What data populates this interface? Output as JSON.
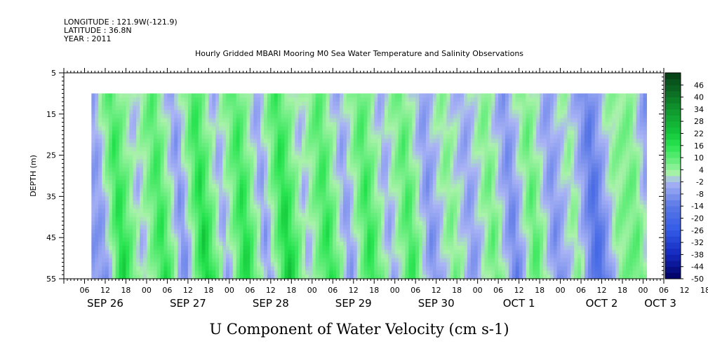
{
  "header": {
    "longitude": "LONGITUDE : 121.9W(-121.9)",
    "latitude": "LATITUDE : 36.8N",
    "year": "YEAR : 2011",
    "title": "Hourly Gridded MBARI Mooring M0 Sea Water Temperature and Salinity Observations"
  },
  "chart_data": {
    "type": "heatmap",
    "title": "U Component of Water Velocity (cm s-1)",
    "ylabel": "DEPTH (m)",
    "xlabel": "",
    "x_hour_labels": [
      "06",
      "12",
      "18",
      "00",
      "06",
      "12",
      "18",
      "00",
      "06",
      "12",
      "18",
      "00",
      "06",
      "12",
      "18",
      "00",
      "06",
      "12",
      "18",
      "00",
      "06",
      "12",
      "18",
      "00",
      "06",
      "12",
      "18",
      "00",
      "06",
      "12",
      "18",
      "00"
    ],
    "x_day_labels": [
      {
        "label": "SEP 26",
        "hour": 12
      },
      {
        "label": "SEP 27",
        "hour": 36
      },
      {
        "label": "SEP 28",
        "hour": 60
      },
      {
        "label": "SEP 29",
        "hour": 84
      },
      {
        "label": "SEP 30",
        "hour": 108
      },
      {
        "label": "OCT  1",
        "hour": 132
      },
      {
        "label": "OCT  2",
        "hour": 156
      },
      {
        "label": "OCT  3",
        "hour": 173
      }
    ],
    "x_range_hours": [
      0,
      174
    ],
    "data_range_hours": [
      8,
      169
    ],
    "y_range": [
      5,
      55
    ],
    "y_ticks": [
      5,
      15,
      25,
      35,
      45,
      55
    ],
    "y_reversed": true,
    "data_depth_range": [
      10,
      55
    ],
    "colorbar_levels": [
      46,
      40,
      34,
      28,
      22,
      16,
      10,
      4,
      -2,
      -8,
      -14,
      -20,
      -26,
      -32,
      -38,
      -44,
      -50
    ],
    "colorbar_range": [
      -50,
      52
    ],
    "colorbar_step": 3,
    "colors": {
      "strong_negative": "#000060",
      "negative": "#4a64e0",
      "weak_negative": "#a7b2f2",
      "weak_positive": "#a8f0a8",
      "positive": "#19e64a",
      "strong_positive": "#0a4a1a"
    },
    "hourly_mean_velocity": [
      {
        "hour": 8,
        "value": -6
      },
      {
        "hour": 13,
        "value": 16
      },
      {
        "hour": 19,
        "value": -2
      },
      {
        "hour": 25,
        "value": 14
      },
      {
        "hour": 31,
        "value": -8
      },
      {
        "hour": 37,
        "value": 18
      },
      {
        "hour": 43,
        "value": -4
      },
      {
        "hour": 49,
        "value": 16
      },
      {
        "hour": 55,
        "value": -6
      },
      {
        "hour": 61,
        "value": 18
      },
      {
        "hour": 67,
        "value": -2
      },
      {
        "hour": 73,
        "value": 14
      },
      {
        "hour": 79,
        "value": -6
      },
      {
        "hour": 85,
        "value": 14
      },
      {
        "hour": 91,
        "value": -4
      },
      {
        "hour": 97,
        "value": 12
      },
      {
        "hour": 103,
        "value": -8
      },
      {
        "hour": 109,
        "value": 6
      },
      {
        "hour": 115,
        "value": -6
      },
      {
        "hour": 121,
        "value": 8
      },
      {
        "hour": 127,
        "value": -10
      },
      {
        "hour": 133,
        "value": 10
      },
      {
        "hour": 139,
        "value": -8
      },
      {
        "hour": 145,
        "value": 4
      },
      {
        "hour": 151,
        "value": -16
      },
      {
        "hour": 157,
        "value": 4
      },
      {
        "hour": 163,
        "value": 8
      },
      {
        "hour": 169,
        "value": -14
      }
    ]
  }
}
